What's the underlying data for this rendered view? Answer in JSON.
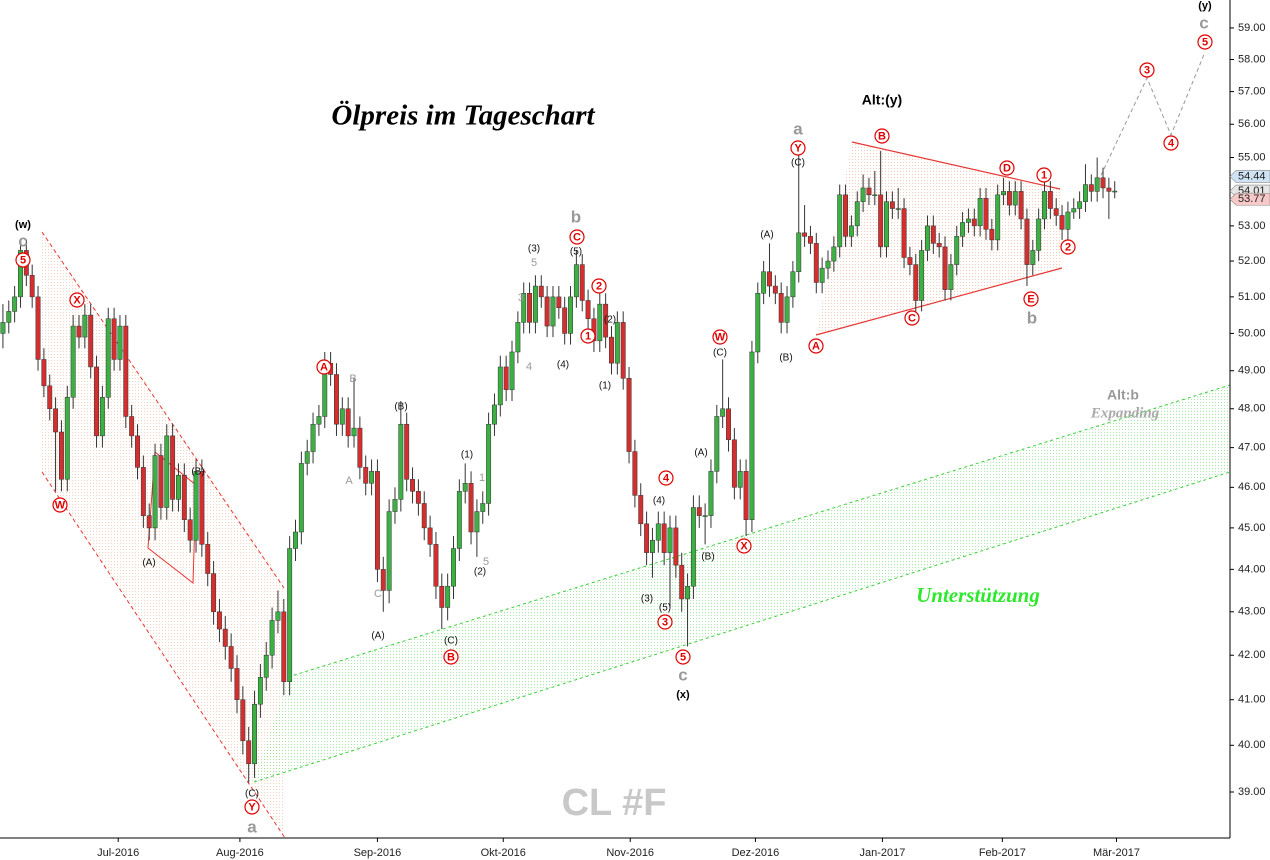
{
  "chart_data": {
    "type": "candlestick",
    "title": "Ölpreis im Tageschart",
    "watermark": "CL #F",
    "log": true,
    "up_color": "#3cb043",
    "down_color": "#d32f2f",
    "ylim": [
      38.04,
      59.9
    ],
    "yticks": [
      {
        "value": 39,
        "label": "39.00"
      },
      {
        "value": 40,
        "label": "40.00"
      },
      {
        "value": 41,
        "label": "41.00"
      },
      {
        "value": 42,
        "label": "42.00"
      },
      {
        "value": 43,
        "label": "43.00"
      },
      {
        "value": 44,
        "label": "44.00"
      },
      {
        "value": 45,
        "label": "45.00"
      },
      {
        "value": 46,
        "label": "46.00"
      },
      {
        "value": 47,
        "label": "47.00"
      },
      {
        "value": 48,
        "label": "48.00"
      },
      {
        "value": 49,
        "label": "49.00"
      },
      {
        "value": 50,
        "label": "50.00"
      },
      {
        "value": 51,
        "label": "51.00"
      },
      {
        "value": 52,
        "label": "52.00"
      },
      {
        "value": 53,
        "label": "53.00"
      },
      {
        "value": 55,
        "label": "55.00"
      },
      {
        "value": 56,
        "label": "56.00"
      },
      {
        "value": 57,
        "label": "57.00"
      },
      {
        "value": 58,
        "label": "58.00"
      },
      {
        "value": 59,
        "label": "59.00"
      }
    ],
    "xlim": [
      -0.5,
      209.7
    ],
    "xticks": [
      {
        "value": 19.7,
        "label": "Jul-2016"
      },
      {
        "value": 40.5,
        "label": "Aug-2016"
      },
      {
        "value": 64,
        "label": "Sep-2016"
      },
      {
        "value": 85.5,
        "label": "Okt-2016"
      },
      {
        "value": 107.2,
        "label": "Nov-2016"
      },
      {
        "value": 128.6,
        "label": "Dez-2016"
      },
      {
        "value": 150.3,
        "label": "Jan-2017"
      },
      {
        "value": 170.8,
        "label": "Feb-2017"
      },
      {
        "value": 190.3,
        "label": "Mär-2017"
      }
    ],
    "price_tags": [
      {
        "value": 54.44,
        "label": "54.44",
        "color": "#cfe3f5"
      },
      {
        "value": 54.01,
        "label": "54.01",
        "color": "#e6e6e6"
      },
      {
        "value": 53.77,
        "label": "53.77",
        "color": "#f7c8c8"
      }
    ],
    "ohlc": [
      [
        50.0,
        50.8,
        49.6,
        50.3
      ],
      [
        50.3,
        50.9,
        50.0,
        50.6
      ],
      [
        50.6,
        51.3,
        50.3,
        51.0
      ],
      [
        51.0,
        52.6,
        50.7,
        52.3
      ],
      [
        52.3,
        52.6,
        51.3,
        51.6
      ],
      [
        51.6,
        51.9,
        50.7,
        51.0
      ],
      [
        51.0,
        51.3,
        49.0,
        49.3
      ],
      [
        49.3,
        49.6,
        48.3,
        48.6
      ],
      [
        48.6,
        48.9,
        47.7,
        48.0
      ],
      [
        48.0,
        48.3,
        45.9,
        47.4
      ],
      [
        47.4,
        47.7,
        45.9,
        46.2
      ],
      [
        46.2,
        48.6,
        45.9,
        48.3
      ],
      [
        48.3,
        50.5,
        48.0,
        50.2
      ],
      [
        50.2,
        50.5,
        49.6,
        49.9
      ],
      [
        49.9,
        50.8,
        49.6,
        50.5
      ],
      [
        50.5,
        50.8,
        48.8,
        49.1
      ],
      [
        49.1,
        49.4,
        47.0,
        47.3
      ],
      [
        47.3,
        48.6,
        47.0,
        48.3
      ],
      [
        48.3,
        50.7,
        48.0,
        50.4
      ],
      [
        50.4,
        50.7,
        49.0,
        49.3
      ],
      [
        49.3,
        50.5,
        49.0,
        50.2
      ],
      [
        50.2,
        50.5,
        47.5,
        47.8
      ],
      [
        47.8,
        48.1,
        47.0,
        47.3
      ],
      [
        47.3,
        47.6,
        46.2,
        46.5
      ],
      [
        46.5,
        46.8,
        45.0,
        45.3
      ],
      [
        45.3,
        45.6,
        44.7,
        45.0
      ],
      [
        45.0,
        47.1,
        44.7,
        46.8
      ],
      [
        46.8,
        47.1,
        45.2,
        45.5
      ],
      [
        45.5,
        47.6,
        45.2,
        47.3
      ],
      [
        47.3,
        47.6,
        45.4,
        45.7
      ],
      [
        45.7,
        46.6,
        45.4,
        46.3
      ],
      [
        46.3,
        46.6,
        44.9,
        45.2
      ],
      [
        45.2,
        45.5,
        44.4,
        44.7
      ],
      [
        44.7,
        46.7,
        44.4,
        46.4
      ],
      [
        46.4,
        46.7,
        44.3,
        44.6
      ],
      [
        44.6,
        44.9,
        43.6,
        43.9
      ],
      [
        43.9,
        44.2,
        42.7,
        43.0
      ],
      [
        43.0,
        43.3,
        42.3,
        42.6
      ],
      [
        42.6,
        42.9,
        41.9,
        42.2
      ],
      [
        42.2,
        42.5,
        41.4,
        41.7
      ],
      [
        41.7,
        42.0,
        40.7,
        41.0
      ],
      [
        41.0,
        41.3,
        39.8,
        40.1
      ],
      [
        40.1,
        40.4,
        39.2,
        39.6
      ],
      [
        39.6,
        41.2,
        39.3,
        40.9
      ],
      [
        40.9,
        41.8,
        40.6,
        41.5
      ],
      [
        41.5,
        42.3,
        41.2,
        42.0
      ],
      [
        42.0,
        43.1,
        41.7,
        42.8
      ],
      [
        42.8,
        43.5,
        42.5,
        43.0
      ],
      [
        43.0,
        43.3,
        41.1,
        41.4
      ],
      [
        41.4,
        44.8,
        41.1,
        44.5
      ],
      [
        44.5,
        45.2,
        44.2,
        44.9
      ],
      [
        44.9,
        46.9,
        44.6,
        46.6
      ],
      [
        46.6,
        47.2,
        46.3,
        46.9
      ],
      [
        46.9,
        47.9,
        46.6,
        47.6
      ],
      [
        47.6,
        48.1,
        47.3,
        47.8
      ],
      [
        47.8,
        49.5,
        47.5,
        49.2
      ],
      [
        49.2,
        49.5,
        48.6,
        48.9
      ],
      [
        48.9,
        49.2,
        47.3,
        47.6
      ],
      [
        47.6,
        48.3,
        47.3,
        48.0
      ],
      [
        48.0,
        48.3,
        47.0,
        47.3
      ],
      [
        47.3,
        48.8,
        47.0,
        47.5
      ],
      [
        47.5,
        47.8,
        46.2,
        46.5
      ],
      [
        46.5,
        46.8,
        45.8,
        46.1
      ],
      [
        46.1,
        46.7,
        45.8,
        46.4
      ],
      [
        46.4,
        46.7,
        43.7,
        44.0
      ],
      [
        44.0,
        44.3,
        43.0,
        43.5
      ],
      [
        43.5,
        45.7,
        43.2,
        45.4
      ],
      [
        45.4,
        46.0,
        45.1,
        45.7
      ],
      [
        45.7,
        48.2,
        45.4,
        47.6
      ],
      [
        47.6,
        47.9,
        45.9,
        46.2
      ],
      [
        46.2,
        46.5,
        45.6,
        45.9
      ],
      [
        45.9,
        46.2,
        45.3,
        45.6
      ],
      [
        45.6,
        45.9,
        44.7,
        45.0
      ],
      [
        45.0,
        45.3,
        44.3,
        44.6
      ],
      [
        44.6,
        44.9,
        43.3,
        43.6
      ],
      [
        43.6,
        43.9,
        42.6,
        43.1
      ],
      [
        43.1,
        43.9,
        42.8,
        43.6
      ],
      [
        43.6,
        44.8,
        43.3,
        44.5
      ],
      [
        44.5,
        46.2,
        44.2,
        45.9
      ],
      [
        45.9,
        46.6,
        45.6,
        46.1
      ],
      [
        46.1,
        46.4,
        44.6,
        44.9
      ],
      [
        44.9,
        45.7,
        44.3,
        45.4
      ],
      [
        45.4,
        45.9,
        45.1,
        45.6
      ],
      [
        45.6,
        47.9,
        45.3,
        47.6
      ],
      [
        47.6,
        48.4,
        47.3,
        48.1
      ],
      [
        48.1,
        49.4,
        47.8,
        49.1
      ],
      [
        49.1,
        49.4,
        48.2,
        48.5
      ],
      [
        48.5,
        49.8,
        48.2,
        49.5
      ],
      [
        49.5,
        50.6,
        49.2,
        50.3
      ],
      [
        50.3,
        51.4,
        50.0,
        51.1
      ],
      [
        51.1,
        51.4,
        50.0,
        50.3
      ],
      [
        50.3,
        51.6,
        50.0,
        51.3
      ],
      [
        51.3,
        51.6,
        50.7,
        51.0
      ],
      [
        51.0,
        51.3,
        49.9,
        50.2
      ],
      [
        50.2,
        51.3,
        49.9,
        51.0
      ],
      [
        51.0,
        51.3,
        50.4,
        50.7
      ],
      [
        50.7,
        51.0,
        49.7,
        50.0
      ],
      [
        50.0,
        51.3,
        49.7,
        51.0
      ],
      [
        51.0,
        52.3,
        50.7,
        51.9
      ],
      [
        51.9,
        52.2,
        50.6,
        50.9
      ],
      [
        50.9,
        51.2,
        50.1,
        50.4
      ],
      [
        50.4,
        50.7,
        49.5,
        49.8
      ],
      [
        49.8,
        51.1,
        49.5,
        50.8
      ],
      [
        50.8,
        51.1,
        49.6,
        49.9
      ],
      [
        49.9,
        50.2,
        48.9,
        49.2
      ],
      [
        49.2,
        50.6,
        48.9,
        50.3
      ],
      [
        50.3,
        50.6,
        48.5,
        48.8
      ],
      [
        48.8,
        49.1,
        46.6,
        46.9
      ],
      [
        46.9,
        47.2,
        45.5,
        45.8
      ],
      [
        45.8,
        46.1,
        44.8,
        45.1
      ],
      [
        45.1,
        45.4,
        44.1,
        44.4
      ],
      [
        44.4,
        45.0,
        43.8,
        44.7
      ],
      [
        44.7,
        45.4,
        44.4,
        45.1
      ],
      [
        45.1,
        45.4,
        44.1,
        44.4
      ],
      [
        44.4,
        45.3,
        43.1,
        45.0
      ],
      [
        45.0,
        45.3,
        43.8,
        44.1
      ],
      [
        44.1,
        44.4,
        43.0,
        43.3
      ],
      [
        43.3,
        43.9,
        42.2,
        43.6
      ],
      [
        43.6,
        45.8,
        43.3,
        45.5
      ],
      [
        45.5,
        45.8,
        45.0,
        45.3
      ],
      [
        45.3,
        45.6,
        44.6,
        45.3
      ],
      [
        45.3,
        46.7,
        45.0,
        46.4
      ],
      [
        46.4,
        48.1,
        46.1,
        47.8
      ],
      [
        47.8,
        49.3,
        47.5,
        48.0
      ],
      [
        48.0,
        48.3,
        46.9,
        47.2
      ],
      [
        47.2,
        47.5,
        45.7,
        46.0
      ],
      [
        46.0,
        46.7,
        45.7,
        46.4
      ],
      [
        46.4,
        46.7,
        44.8,
        45.2
      ],
      [
        45.2,
        49.8,
        44.9,
        49.5
      ],
      [
        49.5,
        51.4,
        49.2,
        51.1
      ],
      [
        51.1,
        52.0,
        50.8,
        51.7
      ],
      [
        51.7,
        52.5,
        51.0,
        51.3
      ],
      [
        51.3,
        51.6,
        50.8,
        51.1
      ],
      [
        51.1,
        51.4,
        50.0,
        50.3
      ],
      [
        50.3,
        51.3,
        50.0,
        51.0
      ],
      [
        51.0,
        52.0,
        50.7,
        51.7
      ],
      [
        51.7,
        55.2,
        51.4,
        52.8
      ],
      [
        52.8,
        53.6,
        52.4,
        52.7
      ],
      [
        52.7,
        53.0,
        52.2,
        52.5
      ],
      [
        52.5,
        52.8,
        51.1,
        51.4
      ],
      [
        51.4,
        52.1,
        51.1,
        51.8
      ],
      [
        51.8,
        52.3,
        51.5,
        52.0
      ],
      [
        52.0,
        52.7,
        51.7,
        52.4
      ],
      [
        52.4,
        54.2,
        52.1,
        53.9
      ],
      [
        53.9,
        54.2,
        52.4,
        52.7
      ],
      [
        52.7,
        53.3,
        52.4,
        53.0
      ],
      [
        53.0,
        54.0,
        52.7,
        53.7
      ],
      [
        53.7,
        54.5,
        53.4,
        54.1
      ],
      [
        54.1,
        54.4,
        53.6,
        53.9
      ],
      [
        53.9,
        54.6,
        53.6,
        53.9
      ],
      [
        53.9,
        55.2,
        52.1,
        52.4
      ],
      [
        52.4,
        54.0,
        52.1,
        53.7
      ],
      [
        53.7,
        54.0,
        53.2,
        53.5
      ],
      [
        53.5,
        54.1,
        53.2,
        53.5
      ],
      [
        53.5,
        53.8,
        51.8,
        52.1
      ],
      [
        52.1,
        52.4,
        51.6,
        51.9
      ],
      [
        51.9,
        52.2,
        50.6,
        50.9
      ],
      [
        50.9,
        52.6,
        50.6,
        52.3
      ],
      [
        52.3,
        53.3,
        52.0,
        53.0
      ],
      [
        53.0,
        53.3,
        52.2,
        52.5
      ],
      [
        52.5,
        52.8,
        52.1,
        52.4
      ],
      [
        52.4,
        52.7,
        50.9,
        51.2
      ],
      [
        51.2,
        52.2,
        50.9,
        51.9
      ],
      [
        51.9,
        53.0,
        51.6,
        52.7
      ],
      [
        52.7,
        53.4,
        52.4,
        53.1
      ],
      [
        53.1,
        53.5,
        52.8,
        53.2
      ],
      [
        53.2,
        53.5,
        52.7,
        53.0
      ],
      [
        53.0,
        54.1,
        52.7,
        53.8
      ],
      [
        53.8,
        54.1,
        52.6,
        52.9
      ],
      [
        52.9,
        53.2,
        52.3,
        52.6
      ],
      [
        52.6,
        54.2,
        52.3,
        53.9
      ],
      [
        53.9,
        54.4,
        53.6,
        54.0
      ],
      [
        54.0,
        54.3,
        53.3,
        53.6
      ],
      [
        53.6,
        54.3,
        53.3,
        54.0
      ],
      [
        54.0,
        54.3,
        52.9,
        53.2
      ],
      [
        53.2,
        53.5,
        51.3,
        51.9
      ],
      [
        51.9,
        52.6,
        51.6,
        52.3
      ],
      [
        52.3,
        53.5,
        52.0,
        53.2
      ],
      [
        53.2,
        54.3,
        52.9,
        54.0
      ],
      [
        54.0,
        54.3,
        53.2,
        53.5
      ],
      [
        53.5,
        53.8,
        53.0,
        53.3
      ],
      [
        53.3,
        53.6,
        52.6,
        52.9
      ],
      [
        52.9,
        53.7,
        52.6,
        53.4
      ],
      [
        53.4,
        53.8,
        53.2,
        53.5
      ],
      [
        53.5,
        54.0,
        53.2,
        53.7
      ],
      [
        53.7,
        54.8,
        53.4,
        54.2
      ],
      [
        54.2,
        54.5,
        53.7,
        54.0
      ],
      [
        54.0,
        55.0,
        53.7,
        54.4
      ],
      [
        54.4,
        54.7,
        53.8,
        54.1
      ],
      [
        54.1,
        54.4,
        53.2,
        54.0
      ],
      [
        54.0,
        54.3,
        53.8,
        54.01
      ]
    ],
    "notes": {
      "alt_b": "Alt:b",
      "expanding": "Expanding",
      "support": "Unterstützung",
      "alt_y": "Alt:(y)"
    },
    "annotations": {
      "red": [
        "5",
        "X",
        "W",
        "Y",
        "A",
        "B",
        "C",
        "2",
        "1",
        "4",
        "3",
        "5",
        "W",
        "X",
        "Y",
        "A",
        "B",
        "C",
        "D",
        "1",
        "2",
        "E",
        "3",
        "4",
        "5"
      ],
      "gray_bold": [
        "c",
        "a",
        "b",
        "c",
        "a",
        "b",
        "c"
      ],
      "gray": [
        "B",
        "A",
        "C",
        "3",
        "5",
        "4",
        "1",
        "5"
      ],
      "black": [
        "(C)",
        "(A)",
        "(B)",
        "(A)",
        "(B)",
        "(C)",
        "(1)",
        "(2)",
        "(3)",
        "(5)",
        "(4)",
        "(2)",
        "(1)",
        "(3)",
        "(4)",
        "(5)",
        "(A)",
        "(B)",
        "(C)",
        "(A)",
        "(B)",
        "(C)"
      ],
      "black_bold": [
        "(w)",
        "(x)",
        "(y)"
      ]
    }
  }
}
